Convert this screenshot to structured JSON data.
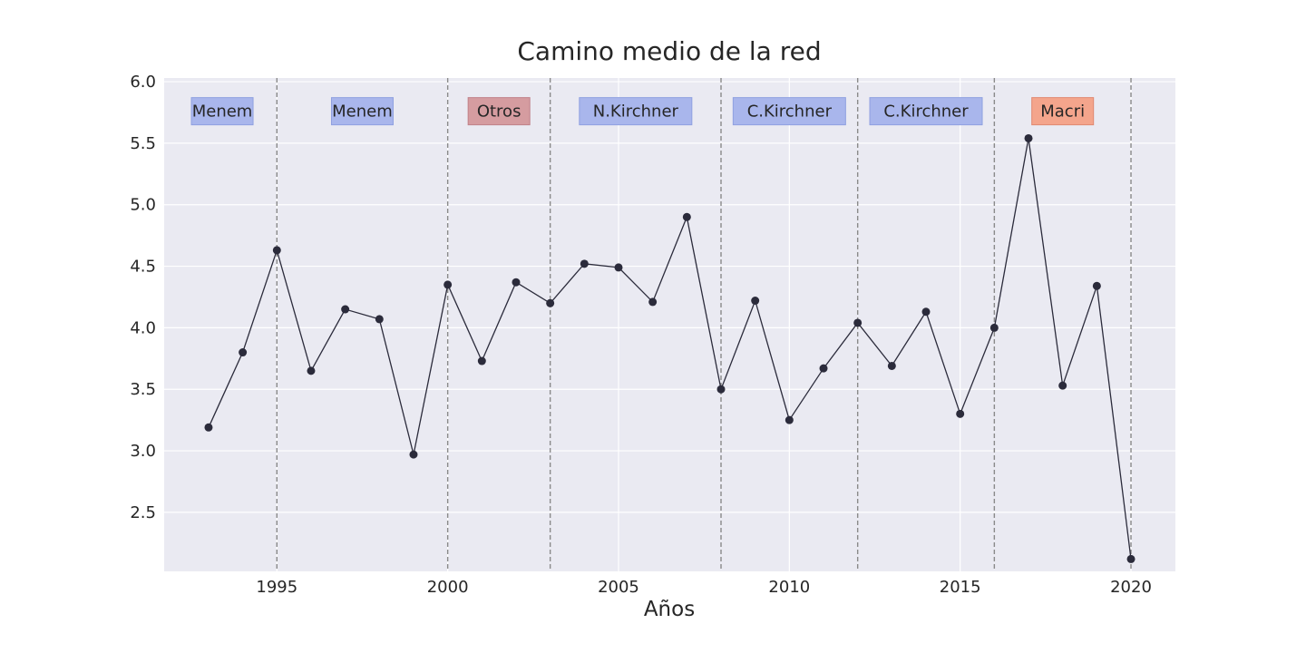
{
  "chart_data": {
    "type": "line",
    "title": "Camino medio de la red",
    "xlabel": "Años",
    "ylabel": "",
    "xlim": [
      1991.7,
      2021.3
    ],
    "ylim": [
      2.02,
      6.03
    ],
    "grid": true,
    "xticks": [
      "1995",
      "2000",
      "2005",
      "2010",
      "2015",
      "2020"
    ],
    "yticks": [
      "2.5",
      "3.0",
      "3.5",
      "4.0",
      "4.5",
      "5.0",
      "5.5",
      "6.0"
    ],
    "series": [
      {
        "color": "#2b2b3b",
        "x": [
          1993,
          1994,
          1995,
          1996,
          1997,
          1998,
          1999,
          2000,
          2001,
          2002,
          2003,
          2004,
          2005,
          2006,
          2007,
          2008,
          2009,
          2010,
          2011,
          2012,
          2013,
          2014,
          2015,
          2016,
          2017,
          2018,
          2019,
          2020
        ],
        "y": [
          3.19,
          3.8,
          4.63,
          3.65,
          4.15,
          4.07,
          2.97,
          4.35,
          3.73,
          4.37,
          4.2,
          4.52,
          4.49,
          4.21,
          4.9,
          3.5,
          4.22,
          3.25,
          3.67,
          4.04,
          3.69,
          4.13,
          3.3,
          4.0,
          5.54,
          3.53,
          4.34,
          2.12
        ]
      }
    ],
    "period_boundaries": [
      1995,
      2000,
      2003,
      2008,
      2012,
      2016,
      2020
    ],
    "periods": [
      {
        "label": "Menem",
        "center": 1993.4,
        "color": "#a9b6ec",
        "border": "#8fa0e0"
      },
      {
        "label": "Menem",
        "center": 1997.5,
        "color": "#a9b6ec",
        "border": "#8fa0e0"
      },
      {
        "label": "Otros",
        "center": 2001.5,
        "color": "#d59ca0",
        "border": "#c08088"
      },
      {
        "label": "N.Kirchner",
        "center": 2005.5,
        "color": "#a9b6ec",
        "border": "#8fa0e0"
      },
      {
        "label": "C.Kirchner",
        "center": 2010.0,
        "color": "#a9b6ec",
        "border": "#8fa0e0"
      },
      {
        "label": "C.Kirchner",
        "center": 2014.0,
        "color": "#a9b6ec",
        "border": "#8fa0e0"
      },
      {
        "label": "Macri",
        "center": 2018.0,
        "color": "#f4a58c",
        "border": "#e08870"
      }
    ],
    "period_label_y": 5.76
  }
}
